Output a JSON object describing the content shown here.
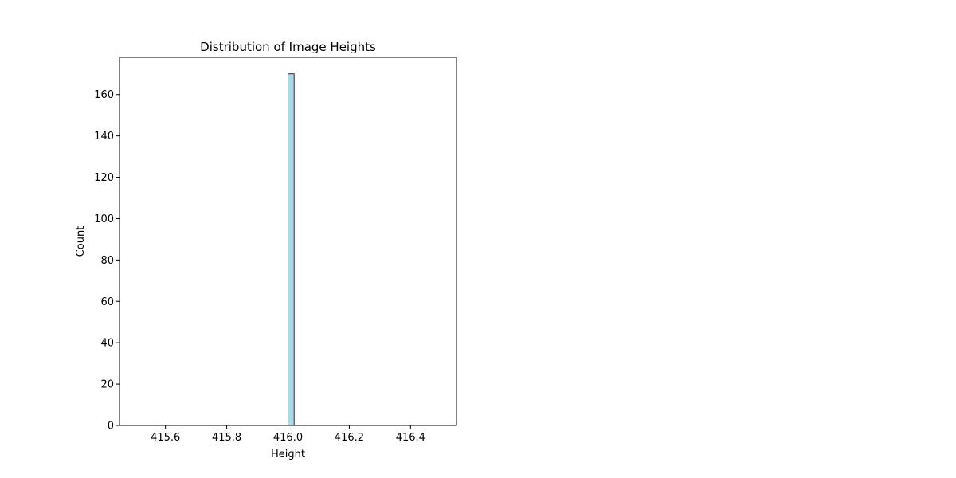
{
  "chart_data": {
    "type": "bar",
    "title": "Distribution of Image Heights",
    "xlabel": "Height",
    "ylabel": "Count",
    "xlim": [
      415.45,
      416.55
    ],
    "ylim": [
      0,
      178
    ],
    "x_ticks": [
      415.6,
      415.8,
      416.0,
      416.2,
      416.4
    ],
    "x_tick_labels": [
      "415.6",
      "415.8",
      "416.0",
      "416.2",
      "416.4"
    ],
    "y_ticks": [
      0,
      20,
      40,
      60,
      80,
      100,
      120,
      140,
      160
    ],
    "y_tick_labels": [
      "0",
      "20",
      "40",
      "60",
      "80",
      "100",
      "120",
      "140",
      "160"
    ],
    "bins": [
      {
        "x_start": 416.0,
        "x_end": 416.02,
        "count": 170
      }
    ],
    "bar_color": "#add8e6",
    "edge_color": "#000000",
    "grid": false,
    "legend": "none"
  }
}
